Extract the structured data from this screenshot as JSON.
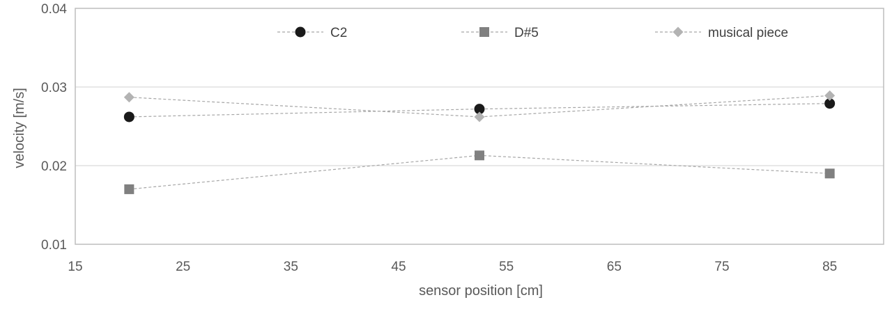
{
  "chart_data": {
    "type": "line",
    "xlabel": "sensor position [cm]",
    "ylabel": "velocity [m/s]",
    "xlim": [
      15,
      90
    ],
    "ylim": [
      0.01,
      0.04
    ],
    "x_ticks": [
      "15",
      "25",
      "35",
      "45",
      "55",
      "65",
      "75",
      "85"
    ],
    "y_ticks": [
      "0.01",
      "0.02",
      "0.03",
      "0.04"
    ],
    "grid": "horizontal",
    "legend_position": "top",
    "series": [
      {
        "name": "C2",
        "marker": "circle",
        "color": "#1a1a1a",
        "x": [
          20,
          52.5,
          85
        ],
        "y": [
          0.0262,
          0.0272,
          0.0279
        ]
      },
      {
        "name": "D#5",
        "marker": "square",
        "color": "#808080",
        "x": [
          20,
          52.5,
          85
        ],
        "y": [
          0.017,
          0.0213,
          0.019
        ]
      },
      {
        "name": "musical piece",
        "marker": "diamond",
        "color": "#b3b3b3",
        "x": [
          20,
          52.5,
          85
        ],
        "y": [
          0.0287,
          0.0262,
          0.0289
        ]
      }
    ]
  }
}
